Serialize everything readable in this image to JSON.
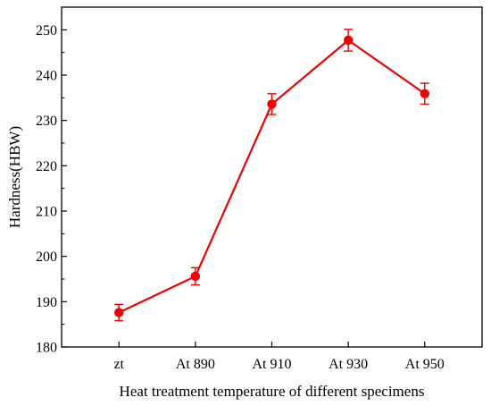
{
  "chart_data": {
    "type": "line",
    "title": "",
    "xlabel": "Heat treatment temperature of different specimens",
    "ylabel": "Hardness(HBW)",
    "categories": [
      "zt",
      "At 890",
      "At 910",
      "At 930",
      "At 950"
    ],
    "series": [
      {
        "values": [
          187.6,
          195.6,
          233.6,
          247.7,
          235.9
        ],
        "errors": [
          1.8,
          1.9,
          2.3,
          2.4,
          2.3
        ],
        "color": "#ee0000"
      }
    ],
    "ylim": [
      180,
      255
    ],
    "yticks": [
      180,
      190,
      200,
      210,
      220,
      230,
      240,
      250
    ],
    "grid": false,
    "legend": "none"
  }
}
